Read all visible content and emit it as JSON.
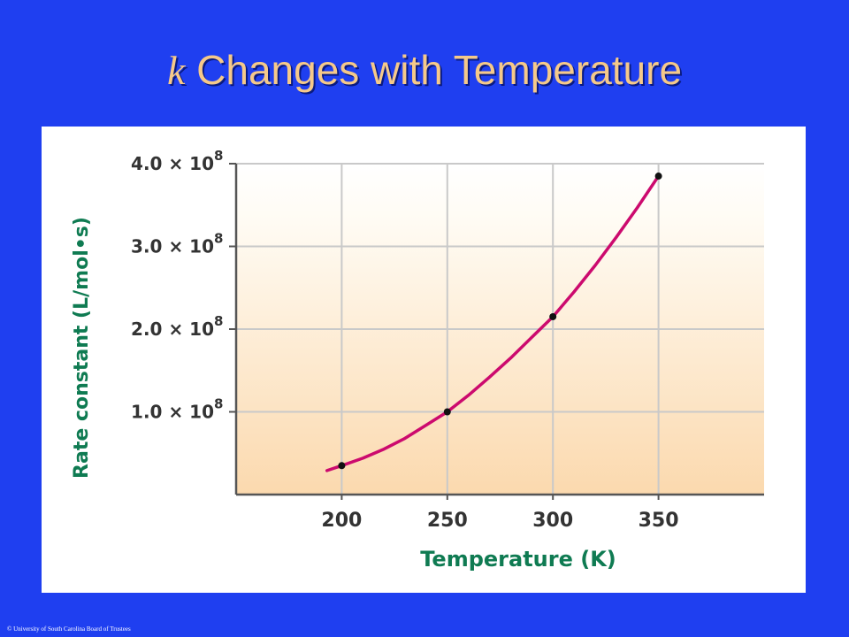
{
  "slide": {
    "title_variable": "k",
    "title_text": "Changes with Temperature",
    "copyright": "© University of South Carolina Board of Trustees"
  },
  "colors": {
    "background": "#1f3ff0",
    "title": "#f5c98a",
    "curve": "#cc0a6e",
    "axis_title": "#0f7b52"
  },
  "chart_data": {
    "type": "line",
    "xlabel": "Temperature (K)",
    "ylabel": "Rate constant (L/mol•s)",
    "x_ticks": [
      200,
      250,
      300,
      350
    ],
    "x_tick_labels": [
      "200",
      "250",
      "300",
      "350"
    ],
    "y_ticks": [
      100000000,
      200000000,
      300000000,
      400000000
    ],
    "y_tick_labels": [
      {
        "mantissa": "1.0 × 10",
        "exponent": "8"
      },
      {
        "mantissa": "2.0 × 10",
        "exponent": "8"
      },
      {
        "mantissa": "3.0 × 10",
        "exponent": "8"
      },
      {
        "mantissa": "4.0 × 10",
        "exponent": "8"
      }
    ],
    "xlim": [
      150,
      400
    ],
    "ylim": [
      0,
      400000000
    ],
    "grid": true,
    "points": {
      "x": [
        200,
        250,
        300,
        350
      ],
      "y": [
        35000000,
        100000000,
        215000000,
        385000000
      ]
    },
    "curve": {
      "x": [
        193,
        200,
        210,
        220,
        230,
        240,
        250,
        260,
        270,
        280,
        290,
        300,
        310,
        320,
        330,
        340,
        350
      ],
      "y": [
        29000000,
        35000000,
        44000000,
        55000000,
        68000000,
        84000000,
        100000000,
        120000000,
        142000000,
        165000000,
        190000000,
        215000000,
        245000000,
        277000000,
        311000000,
        347000000,
        385000000
      ]
    }
  }
}
